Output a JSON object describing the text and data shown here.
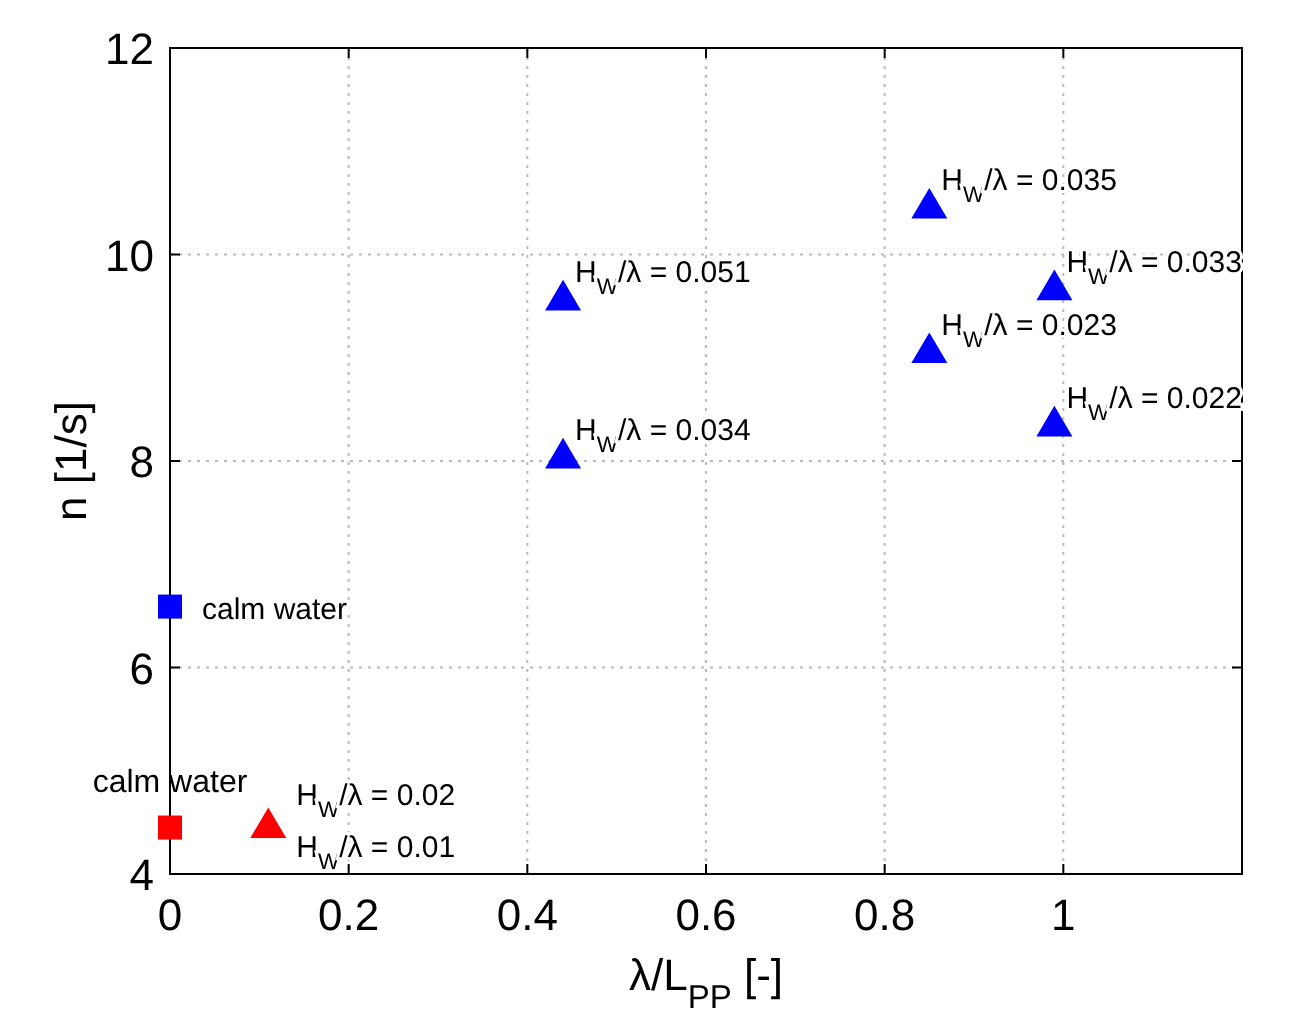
{
  "chart_data": {
    "type": "scatter",
    "xlabel": "λ/L$_{PP}$ [-]",
    "ylabel": "n [1/s]",
    "xlim": [
      0,
      1.2
    ],
    "ylim": [
      4,
      12
    ],
    "xticks": [
      0,
      0.2,
      0.4,
      0.6,
      0.8,
      1
    ],
    "yticks": [
      4,
      6,
      8,
      10,
      12
    ],
    "grid": true,
    "series": [
      {
        "color": "#0000ff",
        "marker": "triangle",
        "x": [
          0.44,
          0.44,
          0.85,
          0.85,
          0.99,
          0.99
        ],
        "values": [
          9.58,
          8.05,
          10.47,
          9.07,
          9.68,
          8.36
        ]
      },
      {
        "color": "#0000ff",
        "marker": "square",
        "x": [
          0
        ],
        "values": [
          6.59
        ]
      },
      {
        "color": "#ff0000",
        "marker": "square",
        "x": [
          0
        ],
        "values": [
          4.45
        ]
      },
      {
        "color": "#ff0000",
        "marker": "triangle",
        "x": [
          0.11
        ],
        "values": [
          4.47
        ]
      }
    ],
    "annotations": [
      {
        "text": "H$_{W}$/λ = 0.051",
        "x": 0.44,
        "y": 9.58
      },
      {
        "text": "H$_{W}$/λ = 0.034",
        "x": 0.44,
        "y": 8.05
      },
      {
        "text": "H$_{W}$/λ = 0.035",
        "x": 0.85,
        "y": 10.47
      },
      {
        "text": "H$_{W}$/λ = 0.023",
        "x": 0.85,
        "y": 9.07
      },
      {
        "text": "H$_{W}$/λ = 0.033",
        "x": 0.99,
        "y": 9.68
      },
      {
        "text": "H$_{W}$/λ = 0.022",
        "x": 0.99,
        "y": 8.36
      },
      {
        "text": "calm water",
        "x": 0,
        "y": 6.59
      },
      {
        "text": "calm water",
        "x": 0,
        "y": 4.45
      },
      {
        "text": "H$_{W}$/λ = 0.02",
        "x": 0.11,
        "y": 4.47
      },
      {
        "text": "H$_{W}$/λ = 0.01",
        "x": 0.11,
        "y": 4.47
      }
    ]
  }
}
